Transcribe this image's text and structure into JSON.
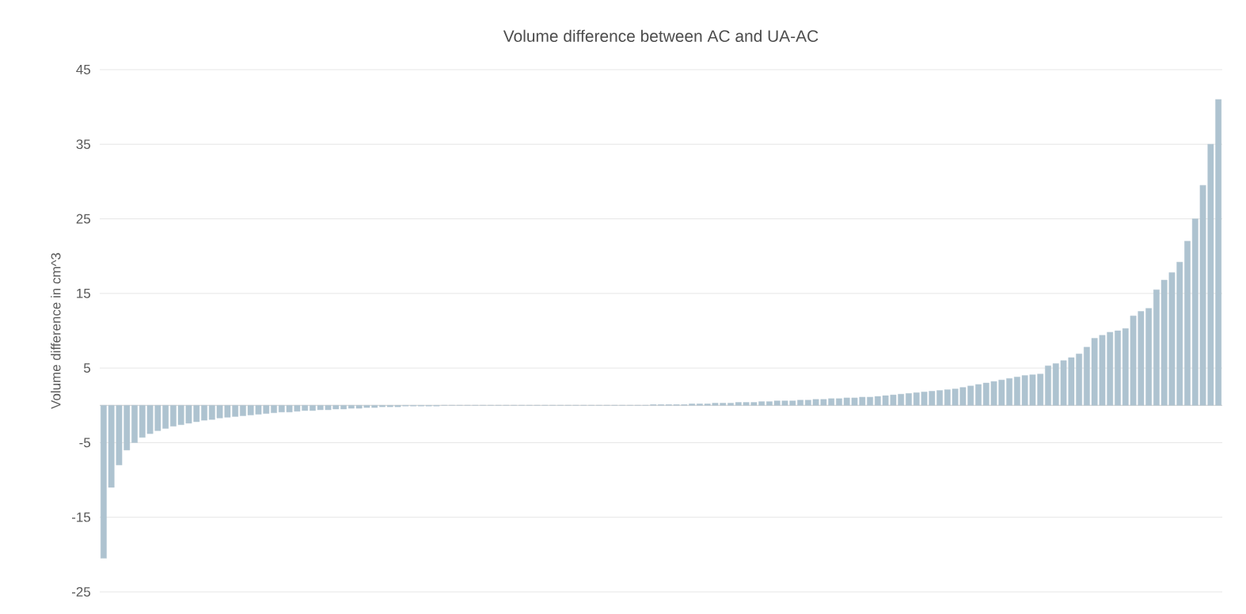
{
  "chart_data": {
    "type": "bar",
    "title": "Volume difference between AC and UA-AC",
    "ylabel": "Volume difference in cm^3",
    "categories": [
      null,
      null,
      null,
      null,
      null,
      null,
      null,
      null,
      null,
      null,
      null,
      null,
      null,
      null,
      null,
      null,
      null,
      null,
      null,
      null,
      null,
      null,
      null,
      null,
      null,
      null,
      null,
      null,
      null,
      null,
      null,
      null,
      null,
      null,
      null,
      null,
      null,
      null,
      null,
      null,
      null,
      null,
      null,
      null,
      null,
      null,
      null,
      null,
      null,
      null,
      null,
      null,
      null,
      null,
      null,
      null,
      null,
      null,
      null,
      null,
      null,
      null,
      null,
      null,
      null,
      null,
      null,
      null,
      null,
      null,
      null,
      null,
      null,
      null,
      null,
      null,
      null,
      null,
      null,
      null,
      null,
      null,
      null,
      null,
      null,
      null,
      null,
      null,
      null,
      null,
      null,
      null,
      null,
      null,
      null,
      null,
      null,
      null,
      null,
      null,
      null,
      null,
      null,
      null,
      null,
      null,
      null,
      null,
      null,
      null,
      null,
      null,
      null,
      null,
      null,
      null,
      null,
      null,
      null,
      null,
      null,
      null,
      null,
      null,
      null,
      null,
      null,
      null,
      null,
      null,
      null,
      null,
      null,
      null,
      null,
      null,
      null,
      null,
      null,
      null,
      null,
      null,
      null,
      null,
      null
    ],
    "values": [
      -20.5,
      -11,
      -8,
      -6,
      -5,
      -4.3,
      -3.8,
      -3.4,
      -3.1,
      -2.8,
      -2.6,
      -2.4,
      -2.2,
      -2,
      -1.9,
      -1.7,
      -1.6,
      -1.5,
      -1.4,
      -1.3,
      -1.2,
      -1.1,
      -1.0,
      -0.9,
      -0.9,
      -0.8,
      -0.7,
      -0.7,
      -0.6,
      -0.6,
      -0.5,
      -0.5,
      -0.4,
      -0.4,
      -0.3,
      -0.3,
      -0.2,
      -0.2,
      -0.2,
      -0.1,
      -0.1,
      -0.1,
      -0.1,
      -0.1,
      0,
      0,
      0,
      0,
      0,
      0,
      0,
      0,
      0,
      0,
      0,
      0,
      0,
      0,
      0,
      0,
      0,
      0,
      0,
      0,
      0,
      0,
      0,
      0,
      0,
      0,
      0,
      0.1,
      0.1,
      0.1,
      0.1,
      0.1,
      0.2,
      0.2,
      0.2,
      0.3,
      0.3,
      0.3,
      0.4,
      0.4,
      0.4,
      0.5,
      0.5,
      0.6,
      0.6,
      0.6,
      0.7,
      0.7,
      0.8,
      0.8,
      0.9,
      0.9,
      1.0,
      1.0,
      1.1,
      1.1,
      1.2,
      1.3,
      1.4,
      1.5,
      1.6,
      1.7,
      1.8,
      1.9,
      2.0,
      2.1,
      2.2,
      2.4,
      2.6,
      2.8,
      3.0,
      3.2,
      3.4,
      3.6,
      3.8,
      4.0,
      4.1,
      4.2,
      5.3,
      5.6,
      6.0,
      6.4,
      6.9,
      7.8,
      9.0,
      9.4,
      9.8,
      10.0,
      10.3,
      12.0,
      12.6,
      13.0,
      15.5,
      16.8,
      17.8,
      19.2,
      22,
      25,
      29.5,
      35,
      41
    ],
    "color": "#aec3d0",
    "ylim": [
      -25,
      45
    ],
    "yticks": [
      -25,
      -15,
      -5,
      5,
      15,
      25,
      35,
      45
    ],
    "grid": "y"
  }
}
